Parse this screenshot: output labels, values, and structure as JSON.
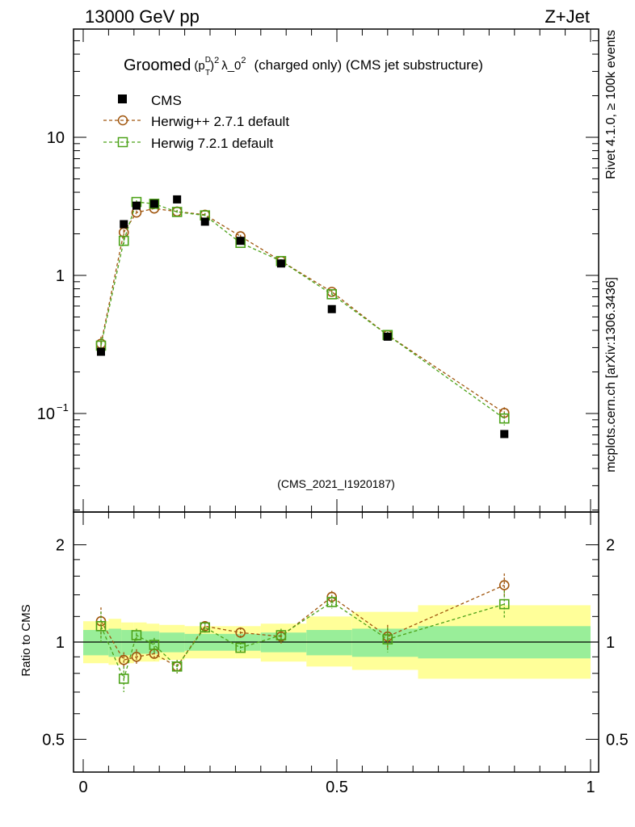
{
  "header": {
    "left_label": "13000 GeV pp",
    "right_label": "Z+Jet"
  },
  "side_labels": {
    "rivet": "Rivet 4.1.0, ≥ 100k events",
    "mcplots": "mcplots.cern.ch [arXiv:1306.3436]"
  },
  "chart_data": [
    {
      "type": "scatter",
      "panel": "main",
      "title": "Groomed (p_T^D)^2 λ_0^2  (charged only) (CMS jet substructure)",
      "title_parts": {
        "lead": "Groomed",
        "p": "p",
        "D_sup": "D",
        "T_sub": "T",
        "sq": "2",
        "lambda": "λ_0",
        "sq2": "2",
        "tail": "(charged only) (CMS jet substructure)"
      },
      "analysis_id": "(CMS_2021_I1920187)",
      "y_scale": "log",
      "ylim": [
        0.02,
        80
      ],
      "xlim": [
        0,
        1
      ],
      "y_ticks": [
        {
          "value": 10,
          "label": "10"
        },
        {
          "value": 1,
          "label": "1"
        },
        {
          "value": 0.1,
          "label": "10",
          "exp": "−1"
        }
      ],
      "legend_position": "top-left",
      "series": [
        {
          "name": "CMS",
          "style": "data",
          "color": "#000000",
          "x": [
            0.035,
            0.08,
            0.105,
            0.14,
            0.185,
            0.24,
            0.31,
            0.39,
            0.49,
            0.6,
            0.83
          ],
          "values": [
            0.28,
            2.35,
            3.2,
            3.3,
            3.55,
            2.45,
            1.78,
            1.22,
            0.57,
            0.36,
            0.071
          ]
        },
        {
          "name": "Herwig++ 2.7.1 default",
          "style": "circle",
          "color": "#a0560e",
          "x": [
            0.035,
            0.08,
            0.105,
            0.14,
            0.185,
            0.24,
            0.31,
            0.39,
            0.49,
            0.6,
            0.83
          ],
          "values": [
            0.32,
            2.05,
            2.85,
            3.05,
            2.9,
            2.75,
            1.92,
            1.27,
            0.76,
            0.37,
            0.101
          ],
          "errors": [
            0.04,
            0.1,
            0.1,
            0.1,
            0.08,
            0.08,
            0.05,
            0.04,
            0.03,
            0.02,
            0.01
          ]
        },
        {
          "name": "Herwig 7.2.1 default",
          "style": "square",
          "color": "#4ca218",
          "x": [
            0.035,
            0.08,
            0.105,
            0.14,
            0.185,
            0.24,
            0.31,
            0.39,
            0.49,
            0.6,
            0.83
          ],
          "values": [
            0.31,
            1.78,
            3.4,
            3.3,
            2.88,
            2.72,
            1.72,
            1.27,
            0.73,
            0.37,
            0.092
          ],
          "errors": [
            0.04,
            0.1,
            0.1,
            0.1,
            0.08,
            0.08,
            0.05,
            0.04,
            0.03,
            0.02,
            0.01
          ]
        }
      ]
    },
    {
      "type": "scatter",
      "panel": "ratio",
      "ylabel": "Ratio to CMS",
      "y_scale": "log",
      "ylim": [
        0.4,
        2.5
      ],
      "xlim": [
        0,
        1
      ],
      "y_ticks": [
        {
          "value": 2,
          "label": "2"
        },
        {
          "value": 1,
          "label": "1"
        },
        {
          "value": 0.5,
          "label": "0.5"
        }
      ],
      "x_ticks": [
        {
          "value": 0,
          "label": "0"
        },
        {
          "value": 0.5,
          "label": "0.5"
        },
        {
          "value": 1,
          "label": "1"
        }
      ],
      "bands": {
        "bin_edges": [
          0,
          0.05,
          0.075,
          0.1,
          0.125,
          0.15,
          0.2,
          0.25,
          0.3,
          0.35,
          0.44,
          0.53,
          0.66,
          1.0
        ],
        "inner_low": [
          0.91,
          0.9,
          0.91,
          0.92,
          0.92,
          0.93,
          0.94,
          0.94,
          0.94,
          0.93,
          0.91,
          0.9,
          0.89
        ],
        "inner_high": [
          1.09,
          1.1,
          1.09,
          1.08,
          1.08,
          1.07,
          1.06,
          1.06,
          1.06,
          1.07,
          1.09,
          1.1,
          1.12
        ],
        "outer_low": [
          0.86,
          0.85,
          0.86,
          0.87,
          0.87,
          0.88,
          0.89,
          0.89,
          0.89,
          0.87,
          0.84,
          0.82,
          0.77
        ],
        "outer_high": [
          1.16,
          1.18,
          1.15,
          1.15,
          1.14,
          1.13,
          1.12,
          1.12,
          1.12,
          1.14,
          1.2,
          1.24,
          1.3
        ],
        "inner_color": "#99ee99",
        "outer_color": "#ffff99"
      },
      "series": [
        {
          "name": "Herwig++ 2.7.1 default",
          "style": "circle",
          "color": "#a0560e",
          "x": [
            0.035,
            0.08,
            0.105,
            0.14,
            0.185,
            0.24,
            0.31,
            0.39,
            0.49,
            0.6,
            0.83
          ],
          "values": [
            1.16,
            0.88,
            0.9,
            0.92,
            0.84,
            1.12,
            1.07,
            1.04,
            1.38,
            1.04,
            1.5
          ],
          "errors": [
            0.12,
            0.05,
            0.05,
            0.04,
            0.04,
            0.04,
            0.04,
            0.05,
            0.06,
            0.09,
            0.13
          ]
        },
        {
          "name": "Herwig 7.2.1 default",
          "style": "square",
          "color": "#4ca218",
          "x": [
            0.035,
            0.08,
            0.105,
            0.14,
            0.185,
            0.24,
            0.31,
            0.39,
            0.49,
            0.6,
            0.83
          ],
          "values": [
            1.12,
            0.77,
            1.05,
            0.98,
            0.84,
            1.11,
            0.96,
            1.05,
            1.33,
            1.02,
            1.31
          ],
          "errors": [
            0.12,
            0.07,
            0.05,
            0.05,
            0.04,
            0.04,
            0.04,
            0.05,
            0.06,
            0.09,
            0.13
          ]
        }
      ]
    }
  ]
}
